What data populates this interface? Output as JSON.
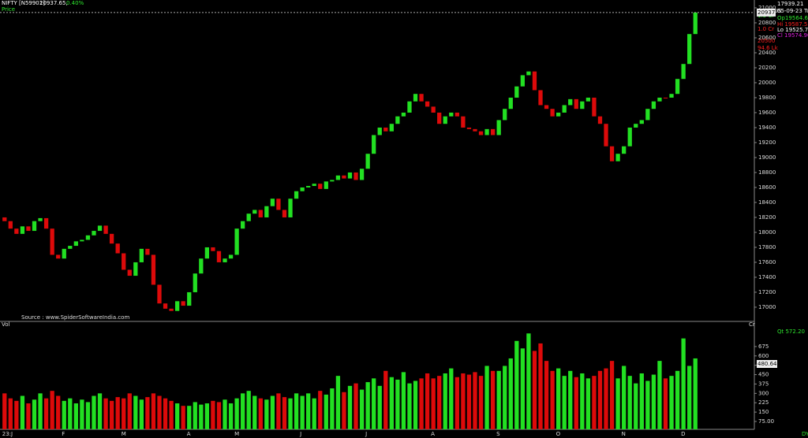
{
  "header": {
    "symbol": "NIFTY [N59901]",
    "last": "20937.65,",
    "change": "0.40%",
    "panel": "Price",
    "source": "Source : www.SpiderSoftwareIndia.com",
    "vol_panel": "Vol",
    "vol_unit": "Cr",
    "period": "DY"
  },
  "info": {
    "value": "17939.21",
    "date": "05-09-23 Tu",
    "tag": "IRIS",
    "open": "Op19564.65",
    "high": "Hi 19587.55",
    "low": "Lo 19525.75",
    "close": "Cl 19574.90"
  },
  "side_notes": {
    "vol_high": "1.3 Cr",
    "level_red": "20500",
    "vol_mid": "1.0 Cr",
    "vol_low": "94.6 Lk",
    "last_box": "20937",
    "qt": "Qt   572.20",
    "vol_box": "480.64"
  },
  "chart_data": [
    {
      "type": "candlestick",
      "up_color": "#22e022",
      "down_color": "#dd0a0a",
      "categories": [
        "23:J",
        null,
        null,
        null,
        null,
        null,
        null,
        null,
        null,
        null,
        "F",
        null,
        null,
        null,
        null,
        null,
        null,
        null,
        null,
        null,
        "M",
        null,
        null,
        null,
        null,
        null,
        null,
        null,
        null,
        null,
        null,
        "A",
        null,
        null,
        null,
        null,
        null,
        null,
        null,
        "M",
        null,
        null,
        null,
        null,
        null,
        null,
        null,
        null,
        null,
        null,
        "J",
        null,
        null,
        null,
        null,
        null,
        null,
        null,
        null,
        null,
        null,
        "J",
        null,
        null,
        null,
        null,
        null,
        null,
        null,
        null,
        null,
        null,
        "A",
        null,
        null,
        null,
        null,
        null,
        null,
        null,
        null,
        null,
        null,
        "S",
        null,
        null,
        null,
        null,
        null,
        null,
        null,
        null,
        null,
        "O",
        null,
        null,
        null,
        null,
        null,
        null,
        null,
        null,
        null,
        null,
        "N",
        null,
        null,
        null,
        null,
        null,
        null,
        null,
        null,
        null,
        "D",
        null,
        null
      ],
      "open": [
        18200,
        18150,
        18050,
        17980,
        18080,
        18020,
        18150,
        18190,
        18050,
        17700,
        17650,
        17780,
        17820,
        17880,
        17900,
        17960,
        18020,
        18090,
        17980,
        17850,
        17720,
        17500,
        17420,
        17600,
        17780,
        17700,
        17300,
        17050,
        16980,
        16950,
        17080,
        17020,
        17200,
        17450,
        17650,
        17800,
        17750,
        17600,
        17650,
        17700,
        18050,
        18150,
        18250,
        18300,
        18200,
        18350,
        18450,
        18300,
        18200,
        18450,
        18550,
        18600,
        18620,
        18650,
        18580,
        18680,
        18700,
        18760,
        18720,
        18800,
        18700,
        18850,
        19050,
        19300,
        19400,
        19350,
        19450,
        19550,
        19600,
        19750,
        19850,
        19750,
        19680,
        19600,
        19450,
        19550,
        19600,
        19550,
        19400,
        19380,
        19350,
        19300,
        19380,
        19300,
        19500,
        19650,
        19800,
        19950,
        20100,
        20150,
        19900,
        19700,
        19650,
        19550,
        19600,
        19700,
        19780,
        19650,
        19750,
        19800,
        19550,
        19450,
        19150,
        18950,
        19050,
        19150,
        19400,
        19450,
        19500,
        19650,
        19750,
        19800,
        19800,
        19850,
        20050,
        20250,
        20650
      ],
      "close": [
        18150,
        18050,
        17980,
        18080,
        18020,
        18150,
        18190,
        18050,
        17700,
        17650,
        17780,
        17820,
        17880,
        17900,
        17960,
        18020,
        18090,
        17980,
        17850,
        17720,
        17500,
        17420,
        17600,
        17780,
        17700,
        17300,
        17050,
        16980,
        16950,
        17080,
        17020,
        17200,
        17450,
        17650,
        17800,
        17750,
        17600,
        17650,
        17700,
        18050,
        18150,
        18250,
        18300,
        18200,
        18350,
        18450,
        18300,
        18200,
        18450,
        18550,
        18600,
        18620,
        18650,
        18580,
        18680,
        18700,
        18760,
        18720,
        18800,
        18700,
        18850,
        19050,
        19300,
        19400,
        19350,
        19450,
        19550,
        19600,
        19750,
        19850,
        19750,
        19680,
        19600,
        19450,
        19550,
        19600,
        19550,
        19400,
        19380,
        19350,
        19300,
        19380,
        19300,
        19500,
        19650,
        19800,
        19950,
        20100,
        20150,
        19900,
        19700,
        19650,
        19550,
        19600,
        19700,
        19780,
        19650,
        19750,
        19800,
        19550,
        19450,
        19150,
        18950,
        19050,
        19150,
        19400,
        19450,
        19500,
        19650,
        19750,
        19800,
        19800,
        19850,
        20050,
        20250,
        20650,
        20937.65
      ],
      "ylim": [
        16810,
        21105
      ],
      "yticks": [
        17000,
        17200,
        17400,
        17600,
        17800,
        18000,
        18200,
        18400,
        18600,
        18800,
        19000,
        19200,
        19400,
        19600,
        19800,
        20000,
        20200,
        20400,
        20600,
        20800,
        21000
      ]
    },
    {
      "type": "bar",
      "values": [
        300,
        260,
        240,
        280,
        220,
        250,
        300,
        260,
        320,
        280,
        240,
        260,
        220,
        250,
        230,
        280,
        300,
        260,
        240,
        270,
        260,
        300,
        280,
        250,
        270,
        300,
        280,
        260,
        240,
        220,
        200,
        200,
        230,
        210,
        220,
        240,
        230,
        250,
        220,
        260,
        300,
        320,
        280,
        260,
        250,
        280,
        300,
        270,
        260,
        300,
        280,
        300,
        260,
        320,
        290,
        340,
        440,
        310,
        360,
        380,
        330,
        390,
        420,
        360,
        480,
        430,
        410,
        470,
        380,
        400,
        420,
        460,
        420,
        440,
        460,
        500,
        430,
        460,
        450,
        470,
        440,
        520,
        480,
        480,
        520,
        580,
        720,
        660,
        780,
        640,
        700,
        560,
        480,
        500,
        440,
        480,
        430,
        460,
        420,
        440,
        480,
        500,
        560,
        420,
        520,
        440,
        380,
        460,
        400,
        450,
        560,
        420,
        440,
        480,
        740,
        520,
        580
      ],
      "ylim": [
        12,
        851
      ],
      "yticks": [
        {
          "value": 75,
          "label": "75.00"
        },
        150,
        225,
        300,
        375,
        450,
        525,
        600,
        675
      ]
    }
  ]
}
